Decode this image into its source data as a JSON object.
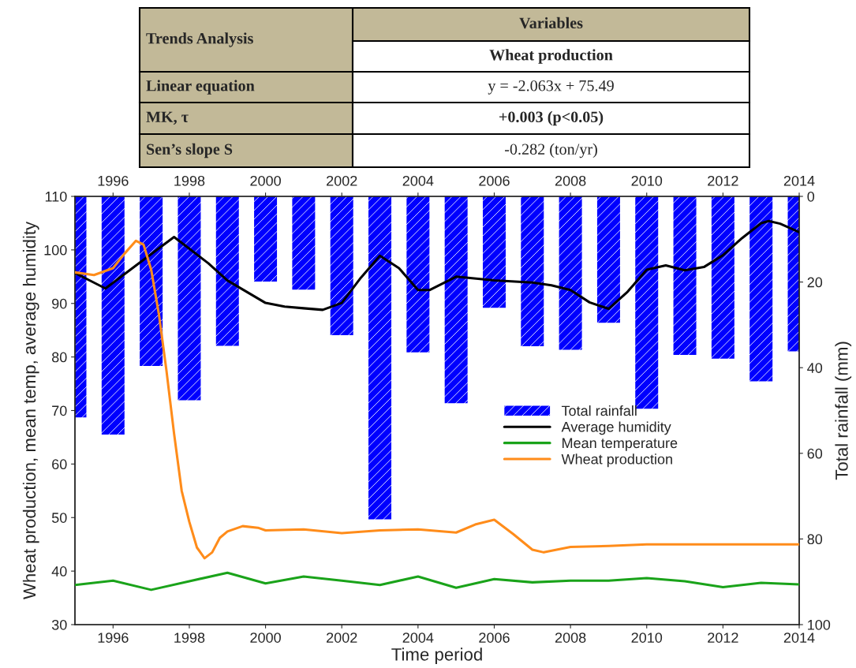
{
  "chart_data": {
    "type": "line",
    "xlabel": "Time period",
    "ylabel": "Wheat production, mean temp, average humidity",
    "y2label": "Total rainfall (mm)",
    "xlim": [
      1995,
      2014
    ],
    "xticks": [
      1996,
      1998,
      2000,
      2002,
      2004,
      2006,
      2008,
      2010,
      2012,
      2014
    ],
    "x2lim": [
      1995,
      2014
    ],
    "x2ticks": [
      1996,
      1998,
      2000,
      2002,
      2004,
      2006,
      2008,
      2010,
      2012,
      2014
    ],
    "ylim": [
      30,
      110
    ],
    "yticks": [
      30,
      40,
      50,
      60,
      70,
      80,
      90,
      100,
      110
    ],
    "y2lim": [
      100,
      0
    ],
    "y2ticks": [
      0,
      20,
      40,
      60,
      80,
      100
    ],
    "grid": false,
    "legend": "right",
    "annotations": [
      "Variables",
      "Trends Analysis",
      "Wheat production",
      "Linear equation",
      "y = -2.063x + 75.49",
      "MK, τ",
      "+0.003 (p<0.05)",
      "Sen’s slope S",
      "-0.282 (ton/yr)"
    ],
    "series": [
      {
        "name": "Total rainfall",
        "type": "bar",
        "axis": "y2",
        "color": "#0000ff",
        "x": [
          1995,
          1996,
          1997,
          1998,
          1999,
          2000,
          2001,
          2002,
          2003,
          2004,
          2005,
          2006,
          2007,
          2008,
          2009,
          2010,
          2011,
          2012,
          2013,
          2014
        ],
        "values": [
          51.6,
          55.6,
          39.6,
          47.6,
          34.9,
          19.9,
          21.8,
          32.4,
          75.4,
          36.4,
          48.3,
          26.0,
          35.0,
          35.8,
          29.5,
          49.6,
          37.0,
          37.9,
          43.2,
          36.2
        ]
      },
      {
        "name": "Average humidity",
        "color": "#000000",
        "x": [
          1995,
          1995.8,
          1996.9,
          1997.6,
          1998.5,
          1999,
          2000,
          2000.5,
          2001,
          2001.5,
          2002,
          2002.5,
          2003,
          2003.5,
          2004,
          2004.3,
          2005,
          2006,
          2007,
          2007.5,
          2008,
          2008.5,
          2009,
          2009.5,
          2010,
          2010.5,
          2011,
          2011.5,
          2012,
          2012.5,
          2013,
          2013.2,
          2013.5,
          2014
        ],
        "values": [
          95.7,
          92.8,
          98.7,
          102.4,
          97.5,
          94.3,
          90.1,
          89.4,
          89.1,
          88.8,
          90.1,
          94.8,
          98.9,
          96.6,
          92.5,
          92.5,
          95.0,
          94.3,
          93.9,
          93.4,
          92.5,
          90.2,
          89.0,
          92.2,
          96.3,
          97.1,
          96.2,
          96.8,
          99.0,
          102.2,
          105.0,
          105.4,
          104.9,
          103.3
        ]
      },
      {
        "name": "Mean temperature",
        "color": "#1aa31a",
        "x": [
          1995,
          1996,
          1997,
          1998,
          1999,
          2000,
          2001,
          2002,
          2003,
          2004,
          2005,
          2006,
          2007,
          2008,
          2009,
          2010,
          2011,
          2012,
          2013,
          2014
        ],
        "values": [
          37.4,
          38.2,
          36.5,
          38.1,
          39.7,
          37.7,
          39.0,
          38.2,
          37.4,
          39.0,
          36.9,
          38.5,
          37.9,
          38.2,
          38.2,
          38.7,
          38.1,
          37.0,
          37.8,
          37.5
        ]
      },
      {
        "name": "Wheat production",
        "color": "#ff8c1a",
        "x": [
          1995,
          1995.5,
          1996,
          1996.3,
          1996.6,
          1996.8,
          1997,
          1997.2,
          1997.4,
          1997.6,
          1997.8,
          1998,
          1998.2,
          1998.4,
          1998.6,
          1998.8,
          1999,
          1999.4,
          1999.8,
          2000,
          2001,
          2002,
          2003,
          2004,
          2004.5,
          2005,
          2005.5,
          2006,
          2006.5,
          2007,
          2007.3,
          2008,
          2009,
          2010,
          2011,
          2012,
          2013,
          2014
        ],
        "values": [
          95.8,
          95.3,
          96.6,
          99.3,
          101.7,
          101.0,
          96.3,
          88.1,
          77.5,
          65.7,
          55.0,
          49.2,
          44.4,
          42.4,
          43.5,
          46.2,
          47.4,
          48.4,
          48.1,
          47.6,
          47.8,
          47.1,
          47.6,
          47.8,
          47.5,
          47.2,
          48.7,
          49.6,
          46.9,
          44.0,
          43.5,
          44.5,
          44.7,
          45.0,
          45.0,
          45.0,
          45.0,
          45.0
        ]
      }
    ]
  }
}
